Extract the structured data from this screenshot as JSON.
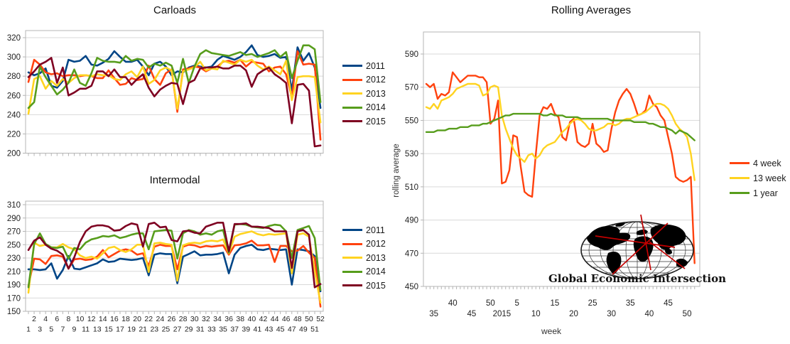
{
  "page": {
    "background": "#ffffff"
  },
  "palette": {
    "s2011": "#004586",
    "s2012": "#ff420e",
    "s2013": "#ffd320",
    "s2014": "#579d1c",
    "s2015": "#7e0021",
    "grid": "#d9d9d9",
    "axis": "#b5b5b5",
    "tick_text": "#222222"
  },
  "chart_data": [
    {
      "id": "carloads",
      "type": "line",
      "title": "Carloads",
      "xlabel": "",
      "ylabel": "",
      "ylim": [
        200,
        320
      ],
      "yticks": [
        320,
        300,
        280,
        260,
        240,
        220,
        200
      ],
      "weeks": [
        1,
        2,
        3,
        4,
        5,
        6,
        7,
        8,
        9,
        10,
        11,
        12,
        13,
        14,
        15,
        16,
        17,
        18,
        19,
        20,
        21,
        22,
        23,
        24,
        25,
        26,
        27,
        28,
        29,
        30,
        31,
        32,
        33,
        34,
        35,
        36,
        37,
        38,
        39,
        40,
        41,
        42,
        43,
        44,
        45,
        46,
        47,
        48,
        49,
        50,
        51,
        52
      ],
      "x_labels_visible": false,
      "legend_position": "right",
      "series": [
        {
          "name": "2011",
          "color": "#004586",
          "values": [
            284,
            281,
            283,
            288,
            270,
            268,
            275,
            297,
            295,
            296,
            301,
            292,
            291,
            294,
            298,
            306,
            300,
            295,
            295,
            297,
            290,
            281,
            293,
            295,
            290,
            281,
            285,
            284,
            289,
            291,
            290,
            289,
            290,
            297,
            301,
            299,
            297,
            300,
            305,
            312,
            302,
            300,
            301,
            303,
            299,
            300,
            265,
            310,
            296,
            304,
            289,
            247
          ]
        },
        {
          "name": "2012",
          "color": "#ff420e",
          "values": [
            274,
            297,
            292,
            284,
            282,
            283,
            280,
            281,
            281,
            280,
            281,
            280,
            278,
            278,
            286,
            278,
            271,
            272,
            278,
            276,
            277,
            291,
            277,
            271,
            283,
            287,
            243,
            287,
            288,
            290,
            289,
            285,
            288,
            290,
            295,
            296,
            294,
            297,
            290,
            295,
            294,
            293,
            285,
            289,
            290,
            282,
            258,
            306,
            292,
            293,
            292,
            214
          ]
        },
        {
          "name": "2013",
          "color": "#ffd320",
          "values": [
            241,
            277,
            280,
            267,
            275,
            270,
            277,
            273,
            278,
            281,
            281,
            280,
            282,
            281,
            281,
            277,
            276,
            282,
            285,
            279,
            290,
            272,
            276,
            286,
            289,
            286,
            246,
            285,
            287,
            289,
            295,
            286,
            288,
            287,
            296,
            294,
            292,
            297,
            295,
            297,
            291,
            287,
            290,
            286,
            282,
            296,
            255,
            279,
            280,
            280,
            279,
            232
          ]
        },
        {
          "name": "2014",
          "color": "#579d1c",
          "values": [
            247,
            253,
            290,
            279,
            270,
            261,
            266,
            273,
            287,
            273,
            270,
            283,
            299,
            296,
            295,
            295,
            294,
            301,
            296,
            298,
            297,
            289,
            293,
            291,
            294,
            291,
            273,
            298,
            273,
            290,
            303,
            307,
            304,
            303,
            302,
            301,
            303,
            305,
            302,
            303,
            300,
            302,
            304,
            307,
            300,
            305,
            278,
            296,
            312,
            312,
            308,
            253
          ]
        },
        {
          "name": "2015",
          "color": "#7e0021",
          "values": [
            279,
            285,
            292,
            295,
            299,
            273,
            289,
            260,
            263,
            267,
            267,
            270,
            285,
            285,
            280,
            287,
            279,
            279,
            271,
            277,
            282,
            268,
            259,
            266,
            270,
            273,
            272,
            251,
            273,
            276,
            288,
            289,
            289,
            290,
            288,
            288,
            291,
            291,
            286,
            269,
            282,
            286,
            289,
            282,
            278,
            273,
            231,
            271,
            272,
            265,
            207,
            208
          ]
        }
      ]
    },
    {
      "id": "intermodal",
      "type": "line",
      "title": "Intermodal",
      "xlabel": "",
      "ylabel": "",
      "ylim": [
        150,
        310
      ],
      "yticks": [
        310,
        290,
        270,
        250,
        230,
        210,
        190,
        170,
        150
      ],
      "weeks": [
        1,
        2,
        3,
        4,
        5,
        6,
        7,
        8,
        9,
        10,
        11,
        12,
        13,
        14,
        15,
        16,
        17,
        18,
        19,
        20,
        21,
        22,
        23,
        24,
        25,
        26,
        27,
        28,
        29,
        30,
        31,
        32,
        33,
        34,
        35,
        36,
        37,
        38,
        39,
        40,
        41,
        42,
        43,
        44,
        45,
        46,
        47,
        48,
        49,
        50,
        51,
        52
      ],
      "x_labels_visible": true,
      "x_label_rows": {
        "near_row": "even weeks 2-52",
        "far_row": "odd weeks 1-51"
      },
      "legend_position": "right",
      "series": [
        {
          "name": "2011",
          "color": "#004586",
          "values": [
            213,
            213,
            212,
            213,
            222,
            199,
            212,
            233,
            214,
            213,
            216,
            219,
            222,
            228,
            224,
            225,
            229,
            228,
            227,
            228,
            230,
            204,
            235,
            237,
            236,
            236,
            192,
            232,
            236,
            240,
            234,
            235,
            235,
            236,
            238,
            207,
            235,
            245,
            248,
            250,
            243,
            242,
            244,
            243,
            242,
            243,
            190,
            243,
            242,
            240,
            233,
            180
          ]
        },
        {
          "name": "2012",
          "color": "#ff420e",
          "values": [
            188,
            229,
            228,
            221,
            233,
            234,
            232,
            214,
            228,
            229,
            227,
            228,
            232,
            242,
            231,
            236,
            241,
            243,
            241,
            235,
            237,
            218,
            247,
            250,
            248,
            248,
            213,
            247,
            250,
            249,
            246,
            248,
            247,
            248,
            249,
            235,
            249,
            250,
            252,
            256,
            249,
            249,
            250,
            224,
            248,
            248,
            240,
            241,
            248,
            238,
            230,
            157
          ]
        },
        {
          "name": "2013",
          "color": "#ffd320",
          "values": [
            178,
            253,
            248,
            250,
            246,
            246,
            251,
            246,
            243,
            234,
            230,
            232,
            229,
            237,
            245,
            247,
            242,
            239,
            243,
            250,
            250,
            209,
            252,
            253,
            251,
            250,
            196,
            249,
            252,
            253,
            252,
            255,
            256,
            255,
            258,
            237,
            262,
            266,
            268,
            270,
            266,
            264,
            266,
            265,
            266,
            267,
            207,
            265,
            267,
            262,
            210,
            163
          ]
        },
        {
          "name": "2014",
          "color": "#579d1c",
          "values": [
            186,
            251,
            267,
            251,
            246,
            245,
            247,
            229,
            245,
            243,
            253,
            258,
            260,
            263,
            262,
            264,
            260,
            262,
            265,
            267,
            267,
            243,
            270,
            271,
            272,
            271,
            229,
            267,
            272,
            270,
            265,
            267,
            265,
            270,
            272,
            238,
            280,
            281,
            280,
            277,
            276,
            275,
            278,
            280,
            279,
            270,
            230,
            272,
            275,
            278,
            260,
            182
          ]
        },
        {
          "name": "2015",
          "color": "#7e0021",
          "values": [
            242,
            256,
            261,
            250,
            244,
            241,
            235,
            214,
            231,
            254,
            270,
            277,
            279,
            279,
            277,
            271,
            272,
            278,
            282,
            280,
            247,
            281,
            283,
            276,
            277,
            257,
            255,
            270,
            271,
            268,
            267,
            277,
            280,
            283,
            283,
            240,
            281,
            281,
            282,
            277,
            277,
            276,
            275,
            270,
            270,
            270,
            215,
            270,
            272,
            265,
            186,
            191
          ]
        }
      ]
    },
    {
      "id": "rolling",
      "type": "line",
      "title": "Rolling Averages",
      "xlabel": "week",
      "ylabel": "rolling average",
      "ylim": [
        450,
        590
      ],
      "yticks": [
        590,
        570,
        550,
        530,
        510,
        490,
        470,
        450
      ],
      "x_span": "2014 week 33 through 2015 week 52",
      "x_ticklabels": [
        {
          "label": "35",
          "index": 2,
          "row": "far"
        },
        {
          "label": "40",
          "index": 7,
          "row": "near"
        },
        {
          "label": "45",
          "index": 12,
          "row": "far"
        },
        {
          "label": "50",
          "index": 17,
          "row": "near"
        },
        {
          "label": "2015",
          "index": 20,
          "row": "far"
        },
        {
          "label": "5",
          "index": 24,
          "row": "near"
        },
        {
          "label": "10",
          "index": 29,
          "row": "far"
        },
        {
          "label": "15",
          "index": 34,
          "row": "near"
        },
        {
          "label": "20",
          "index": 39,
          "row": "far"
        },
        {
          "label": "25",
          "index": 44,
          "row": "near"
        },
        {
          "label": "30",
          "index": 49,
          "row": "far"
        },
        {
          "label": "35",
          "index": 54,
          "row": "near"
        },
        {
          "label": "40",
          "index": 59,
          "row": "far"
        },
        {
          "label": "45",
          "index": 64,
          "row": "near"
        },
        {
          "label": "50",
          "index": 69,
          "row": "far"
        }
      ],
      "legend_position": "right",
      "watermark": "Global Economic Intersection",
      "series": [
        {
          "name": "4 week",
          "color": "#ff420e",
          "values": [
            572,
            570,
            572,
            563,
            566,
            565,
            567,
            579,
            576,
            573,
            575,
            577,
            577,
            577,
            576,
            576,
            573,
            548,
            551,
            562,
            512,
            513,
            520,
            541,
            540,
            522,
            507,
            505,
            504,
            530,
            553,
            558,
            557,
            560,
            554,
            552,
            540,
            538,
            549,
            551,
            537,
            535,
            534,
            536,
            548,
            536,
            534,
            531,
            532,
            545,
            555,
            562,
            566,
            569,
            566,
            560,
            553,
            554,
            556,
            565,
            560,
            558,
            553,
            550,
            540,
            530,
            516,
            514,
            513,
            514,
            516,
            464
          ]
        },
        {
          "name": "13 week",
          "color": "#ffd320",
          "values": [
            558,
            557,
            560,
            557,
            562,
            563,
            564,
            566,
            569,
            570,
            571,
            572,
            572,
            572,
            571,
            565,
            566,
            570,
            571,
            570,
            553,
            545,
            539,
            533,
            529,
            527,
            525,
            529,
            530,
            527,
            529,
            533,
            535,
            536,
            537,
            540,
            543,
            545,
            548,
            550,
            551,
            550,
            548,
            545,
            544,
            544,
            545,
            546,
            548,
            548,
            547,
            548,
            550,
            551,
            551,
            552,
            553,
            554,
            555,
            557,
            559,
            560,
            560,
            559,
            557,
            553,
            548,
            545,
            543,
            540,
            530,
            514
          ]
        },
        {
          "name": "1 year",
          "color": "#579d1c",
          "values": [
            543,
            543,
            543,
            544,
            544,
            544,
            545,
            545,
            545,
            546,
            546,
            546,
            547,
            547,
            547,
            548,
            548,
            549,
            550,
            551,
            552,
            553,
            553,
            554,
            554,
            554,
            554,
            554,
            554,
            554,
            554,
            553,
            553,
            554,
            553,
            553,
            553,
            552,
            552,
            552,
            552,
            551,
            551,
            551,
            551,
            551,
            551,
            551,
            551,
            550,
            550,
            550,
            550,
            550,
            550,
            549,
            549,
            549,
            549,
            548,
            548,
            547,
            546,
            546,
            545,
            544,
            542,
            544,
            543,
            542,
            540,
            538
          ]
        }
      ]
    }
  ]
}
